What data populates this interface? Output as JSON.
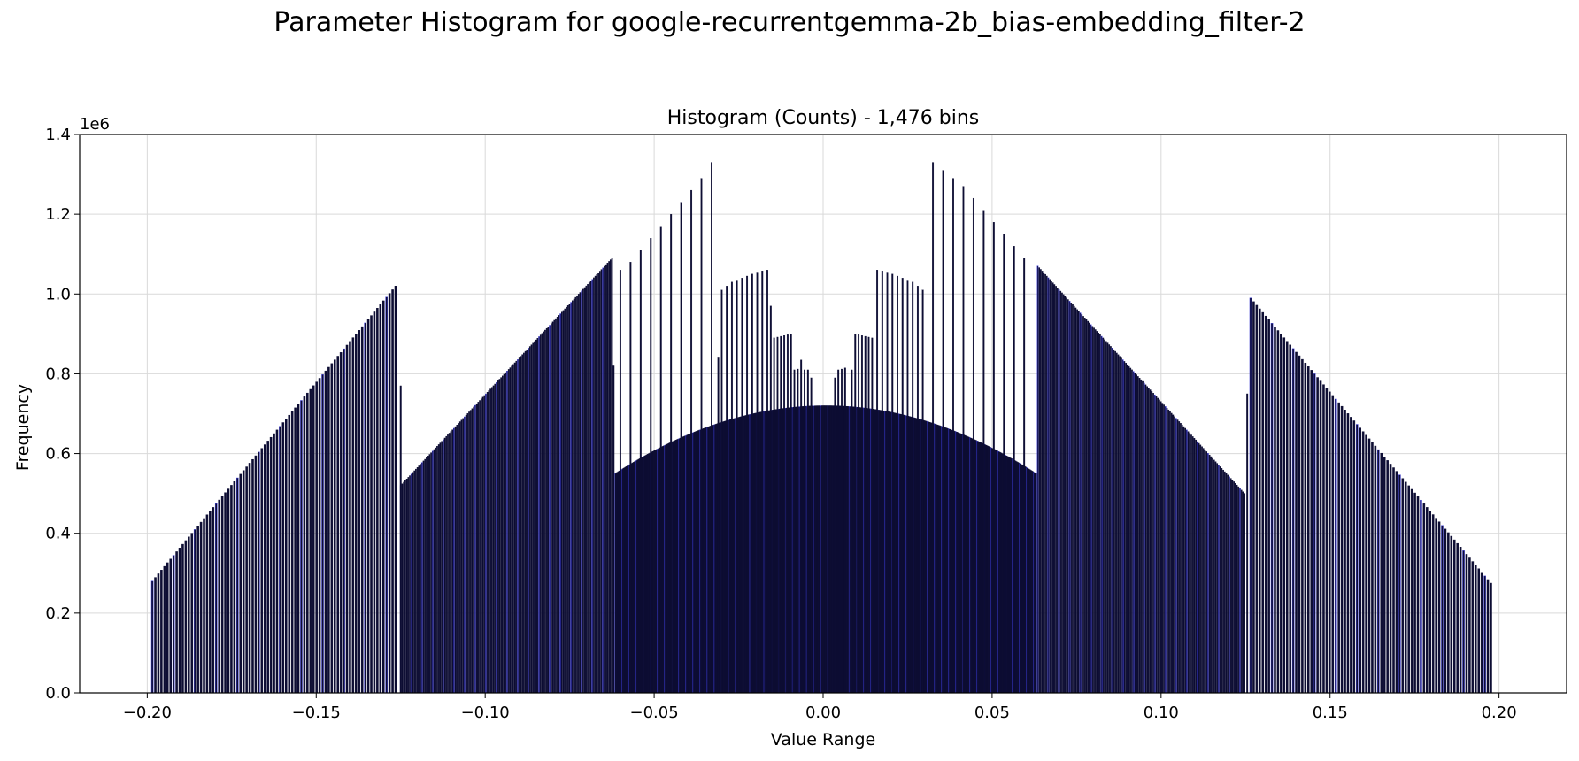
{
  "figure": {
    "suptitle": "Parameter Histogram for google-recurrentgemma-2b_bias-embedding_filter-2"
  },
  "chart_data": {
    "type": "bar",
    "title": "Histogram (Counts) - 1,476 bins",
    "xlabel": "Value Range",
    "ylabel": "Frequency",
    "y_multiplier_label": "1e6",
    "xlim": [
      -0.22,
      0.22
    ],
    "ylim": [
      0,
      1.4
    ],
    "xticks": [
      -0.2,
      -0.15,
      -0.1,
      -0.05,
      0.0,
      0.05,
      0.1,
      0.15,
      0.2
    ],
    "xtick_labels": [
      "−0.20",
      "−0.15",
      "−0.10",
      "−0.05",
      "0.00",
      "0.05",
      "0.10",
      "0.15",
      "0.20"
    ],
    "yticks": [
      0.0,
      0.2,
      0.4,
      0.6,
      0.8,
      1.0,
      1.2,
      1.4
    ],
    "ytick_labels": [
      "0.0",
      "0.2",
      "0.4",
      "0.6",
      "0.8",
      "1.0",
      "1.2",
      "1.4"
    ],
    "grid": true,
    "bar_color": "#0d0d33",
    "edge_color": "#3b3bd9",
    "segments": [
      {
        "x_start": -0.1985,
        "x_end": -0.1265,
        "step": 0.0009,
        "y_start": 0.28,
        "y_end": 1.02
      },
      {
        "x_start": -0.125,
        "x_end": -0.0625,
        "step": 0.00045,
        "y_start": 0.52,
        "y_end": 1.09
      },
      {
        "x_start": -0.0615,
        "x_end": 0.063,
        "step": 0.0003,
        "y_peak": 0.72,
        "y_edge": 0.55
      },
      {
        "x_start": 0.0635,
        "x_end": 0.1245,
        "step": 0.00045,
        "y_start": 1.07,
        "y_end": 0.5
      },
      {
        "x_start": 0.1265,
        "x_end": 0.198,
        "step": 0.0009,
        "y_start": 0.99,
        "y_end": 0.275
      }
    ],
    "spikes": [
      {
        "x": -0.125,
        "y": 0.77
      },
      {
        "x": -0.062,
        "y": 0.82
      },
      {
        "x": -0.06,
        "y": 1.06
      },
      {
        "x": -0.057,
        "y": 1.08
      },
      {
        "x": -0.054,
        "y": 1.11
      },
      {
        "x": -0.051,
        "y": 1.14
      },
      {
        "x": -0.048,
        "y": 1.17
      },
      {
        "x": -0.045,
        "y": 1.2
      },
      {
        "x": -0.042,
        "y": 1.23
      },
      {
        "x": -0.039,
        "y": 1.26
      },
      {
        "x": -0.036,
        "y": 1.29
      },
      {
        "x": -0.033,
        "y": 1.33
      },
      {
        "x": -0.031,
        "y": 0.84
      },
      {
        "x": -0.03,
        "y": 1.01
      },
      {
        "x": -0.0285,
        "y": 1.02
      },
      {
        "x": -0.027,
        "y": 1.03
      },
      {
        "x": -0.0255,
        "y": 1.035
      },
      {
        "x": -0.024,
        "y": 1.04
      },
      {
        "x": -0.0225,
        "y": 1.045
      },
      {
        "x": -0.021,
        "y": 1.05
      },
      {
        "x": -0.0195,
        "y": 1.055
      },
      {
        "x": -0.018,
        "y": 1.058
      },
      {
        "x": -0.0165,
        "y": 1.06
      },
      {
        "x": -0.0155,
        "y": 0.97
      },
      {
        "x": -0.0145,
        "y": 0.89
      },
      {
        "x": -0.0135,
        "y": 0.892
      },
      {
        "x": -0.0125,
        "y": 0.894
      },
      {
        "x": -0.0115,
        "y": 0.896
      },
      {
        "x": -0.0105,
        "y": 0.898
      },
      {
        "x": -0.0095,
        "y": 0.9
      },
      {
        "x": -0.0085,
        "y": 0.81
      },
      {
        "x": -0.0075,
        "y": 0.812
      },
      {
        "x": -0.0065,
        "y": 0.835
      },
      {
        "x": -0.0055,
        "y": 0.81
      },
      {
        "x": -0.0045,
        "y": 0.81
      },
      {
        "x": -0.0035,
        "y": 0.79
      },
      {
        "x": 0.0035,
        "y": 0.79
      },
      {
        "x": 0.0045,
        "y": 0.81
      },
      {
        "x": 0.0055,
        "y": 0.812
      },
      {
        "x": 0.0065,
        "y": 0.815
      },
      {
        "x": 0.0085,
        "y": 0.81
      },
      {
        "x": 0.0095,
        "y": 0.9
      },
      {
        "x": 0.0105,
        "y": 0.898
      },
      {
        "x": 0.0115,
        "y": 0.896
      },
      {
        "x": 0.0125,
        "y": 0.894
      },
      {
        "x": 0.0135,
        "y": 0.892
      },
      {
        "x": 0.0145,
        "y": 0.89
      },
      {
        "x": 0.016,
        "y": 1.06
      },
      {
        "x": 0.0175,
        "y": 1.058
      },
      {
        "x": 0.019,
        "y": 1.055
      },
      {
        "x": 0.0205,
        "y": 1.05
      },
      {
        "x": 0.022,
        "y": 1.045
      },
      {
        "x": 0.0235,
        "y": 1.04
      },
      {
        "x": 0.025,
        "y": 1.035
      },
      {
        "x": 0.0265,
        "y": 1.03
      },
      {
        "x": 0.028,
        "y": 1.02
      },
      {
        "x": 0.0295,
        "y": 1.01
      },
      {
        "x": 0.0325,
        "y": 1.33
      },
      {
        "x": 0.0355,
        "y": 1.31
      },
      {
        "x": 0.0385,
        "y": 1.29
      },
      {
        "x": 0.0415,
        "y": 1.27
      },
      {
        "x": 0.0445,
        "y": 1.24
      },
      {
        "x": 0.0475,
        "y": 1.21
      },
      {
        "x": 0.0505,
        "y": 1.18
      },
      {
        "x": 0.0535,
        "y": 1.15
      },
      {
        "x": 0.0565,
        "y": 1.12
      },
      {
        "x": 0.0595,
        "y": 1.09
      },
      {
        "x": 0.1255,
        "y": 0.75
      }
    ]
  }
}
